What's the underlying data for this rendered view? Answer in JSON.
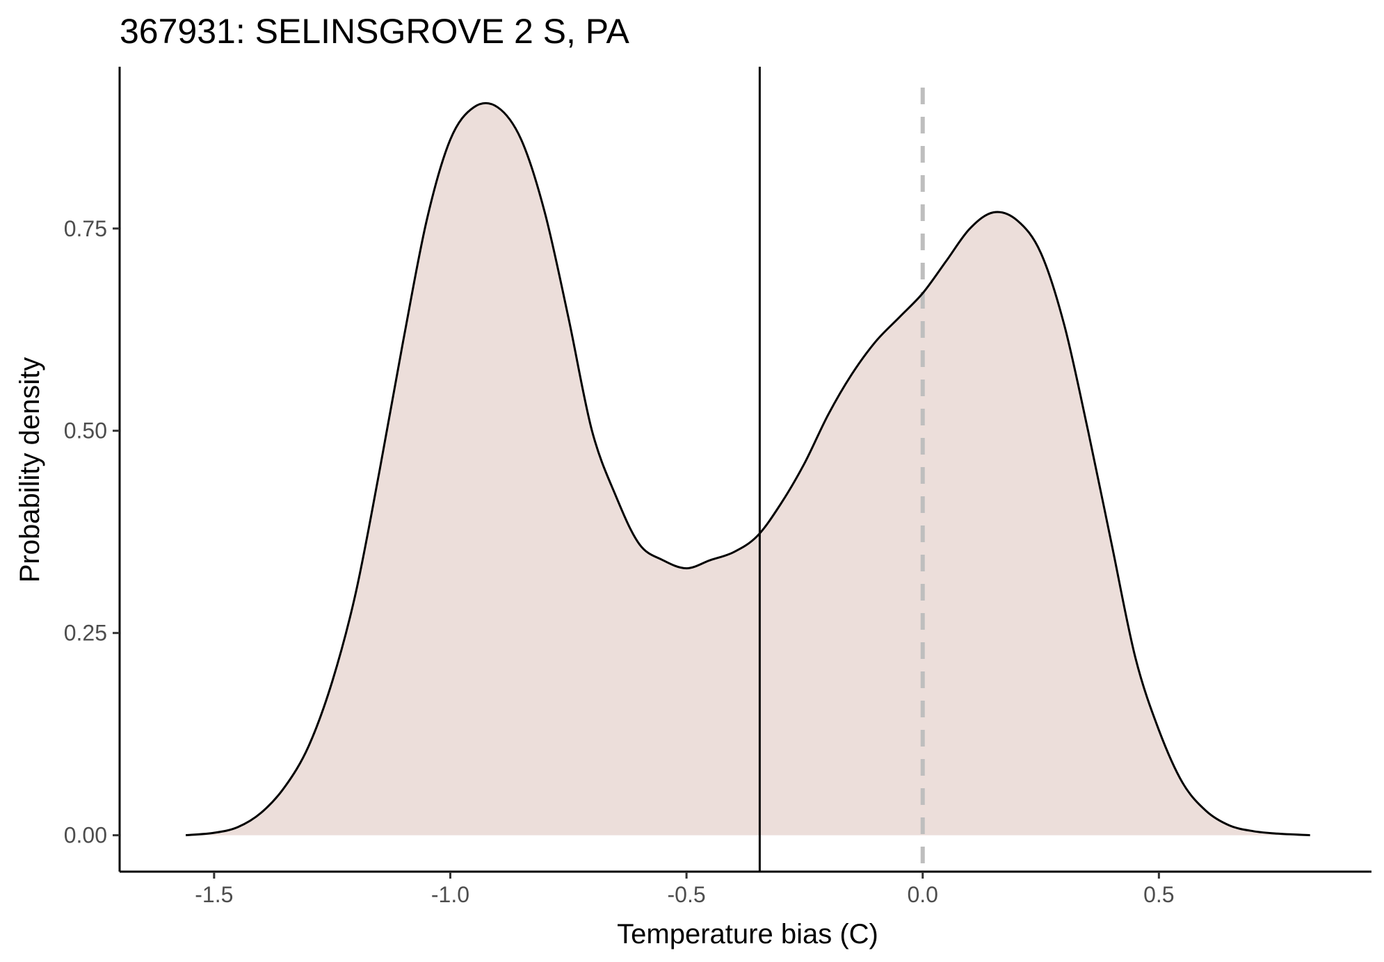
{
  "chart_data": {
    "type": "area",
    "title": "367931: SELINSGROVE 2 S, PA",
    "xlabel": "Temperature bias (C)",
    "ylabel": "Probability density",
    "xlim": [
      -1.7,
      0.95
    ],
    "ylim": [
      -0.045,
      0.95
    ],
    "x_ticks": [
      -1.5,
      -1.0,
      -0.5,
      0.0,
      0.5
    ],
    "x_tick_labels": [
      "-1.5",
      "-1.0",
      "-0.5",
      "0.0",
      "0.5"
    ],
    "y_ticks": [
      0.0,
      0.25,
      0.5,
      0.75
    ],
    "y_tick_labels": [
      "0.00",
      "0.25",
      "0.50",
      "0.75"
    ],
    "grid": false,
    "legend": "none",
    "fill_color": "#ecdeda",
    "line_color": "#000000",
    "series": [
      {
        "x": [
          -1.56,
          -1.5,
          -1.45,
          -1.4,
          -1.35,
          -1.3,
          -1.25,
          -1.2,
          -1.15,
          -1.1,
          -1.05,
          -1.0,
          -0.95,
          -0.9,
          -0.85,
          -0.8,
          -0.75,
          -0.7,
          -0.65,
          -0.6,
          -0.55,
          -0.5,
          -0.45,
          -0.4,
          -0.35,
          -0.3,
          -0.25,
          -0.2,
          -0.15,
          -0.1,
          -0.05,
          0.0,
          0.05,
          0.1,
          0.15,
          0.2,
          0.25,
          0.3,
          0.35,
          0.4,
          0.45,
          0.5,
          0.55,
          0.6,
          0.65,
          0.7,
          0.75,
          0.82
        ],
        "y": [
          0.0,
          0.003,
          0.01,
          0.028,
          0.06,
          0.11,
          0.19,
          0.3,
          0.45,
          0.61,
          0.76,
          0.86,
          0.9,
          0.9,
          0.86,
          0.77,
          0.64,
          0.5,
          0.42,
          0.36,
          0.34,
          0.33,
          0.34,
          0.35,
          0.37,
          0.41,
          0.46,
          0.52,
          0.57,
          0.61,
          0.64,
          0.67,
          0.71,
          0.75,
          0.77,
          0.76,
          0.72,
          0.63,
          0.5,
          0.36,
          0.22,
          0.13,
          0.065,
          0.03,
          0.012,
          0.005,
          0.002,
          0.0
        ]
      }
    ],
    "vlines": [
      {
        "x": -0.345,
        "style": "solid",
        "color": "#000000"
      },
      {
        "x": 0.0,
        "style": "dashed",
        "color": "#bebebe"
      }
    ]
  }
}
